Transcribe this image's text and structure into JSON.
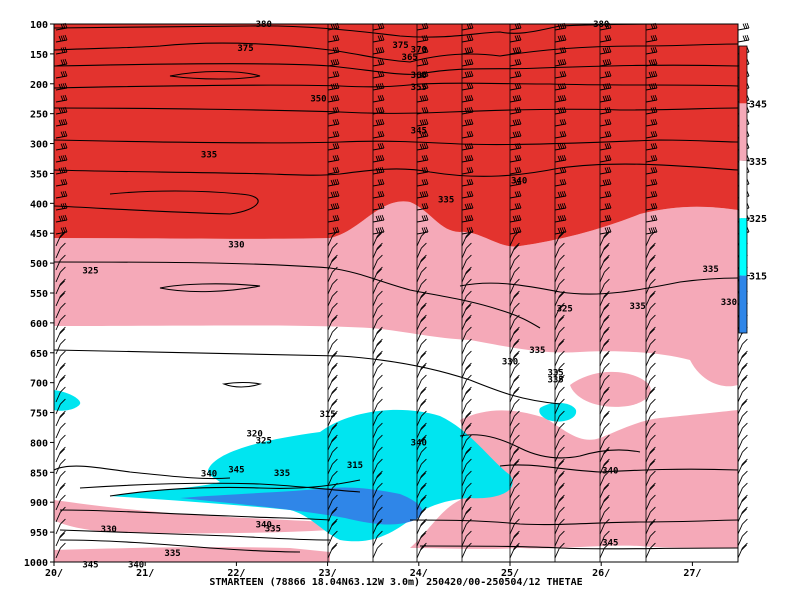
{
  "chart_data": {
    "type": "contour",
    "title": "STMARTEEN (78866 18.04N63.12W 3.0m) 250420/00-250504/12 THETAE",
    "x_tick_labels": [
      "20/",
      "21/",
      "22/",
      "23/",
      "24/",
      "25/",
      "26/",
      "27/"
    ],
    "y_tick_labels": [
      "100",
      "150",
      "200",
      "250",
      "300",
      "350",
      "400",
      "450",
      "500",
      "550",
      "600",
      "650",
      "700",
      "750",
      "800",
      "850",
      "900",
      "950",
      "1000"
    ],
    "y_ticks": [
      100,
      150,
      200,
      250,
      300,
      350,
      400,
      450,
      500,
      550,
      600,
      650,
      700,
      750,
      800,
      850,
      900,
      950,
      1000
    ],
    "x_range": [
      20,
      27.5
    ],
    "y_range_hPa": [
      1000,
      100
    ],
    "colorbar": {
      "tick_labels": [
        "345",
        "335",
        "325",
        "315"
      ],
      "levels": [
        {
          "range": "> 345",
          "color": "#e3332e"
        },
        {
          "range": "335-345",
          "color": "#f5a9b8"
        },
        {
          "range": "325-335",
          "color": "#ffffff"
        },
        {
          "range": "315-325",
          "color": "#00ffff"
        },
        {
          "range": "< 315",
          "color": "#2f86e8"
        }
      ]
    },
    "contour_labels": [
      {
        "text": "380",
        "day": 22.3,
        "p": 100
      },
      {
        "text": "380",
        "day": 26.0,
        "p": 100
      },
      {
        "text": "375",
        "day": 22.1,
        "p": 140
      },
      {
        "text": "375",
        "day": 23.8,
        "p": 135
      },
      {
        "text": "370",
        "day": 24.0,
        "p": 143
      },
      {
        "text": "365",
        "day": 23.9,
        "p": 155
      },
      {
        "text": "360",
        "day": 24.0,
        "p": 185
      },
      {
        "text": "355",
        "day": 24.0,
        "p": 205
      },
      {
        "text": "350",
        "day": 22.9,
        "p": 225
      },
      {
        "text": "345",
        "day": 24.0,
        "p": 278
      },
      {
        "text": "340",
        "day": 25.1,
        "p": 362
      },
      {
        "text": "335",
        "day": 21.7,
        "p": 318
      },
      {
        "text": "335",
        "day": 24.3,
        "p": 394
      },
      {
        "text": "335",
        "day": 27.2,
        "p": 510
      },
      {
        "text": "335",
        "day": 26.4,
        "p": 572
      },
      {
        "text": "335",
        "day": 25.3,
        "p": 645
      },
      {
        "text": "335",
        "day": 25.5,
        "p": 683
      },
      {
        "text": "335",
        "day": 22.5,
        "p": 851
      },
      {
        "text": "335",
        "day": 22.4,
        "p": 944
      },
      {
        "text": "335",
        "day": 21.3,
        "p": 985
      },
      {
        "text": "330",
        "day": 22.0,
        "p": 469
      },
      {
        "text": "330",
        "day": 25.0,
        "p": 665
      },
      {
        "text": "330",
        "day": 27.4,
        "p": 565
      },
      {
        "text": "330",
        "day": 20.6,
        "p": 945
      },
      {
        "text": "325",
        "day": 20.4,
        "p": 512
      },
      {
        "text": "325",
        "day": 25.6,
        "p": 576
      },
      {
        "text": "325",
        "day": 22.3,
        "p": 797
      },
      {
        "text": "320",
        "day": 22.2,
        "p": 785
      },
      {
        "text": "315",
        "day": 23.0,
        "p": 752
      },
      {
        "text": "315",
        "day": 23.3,
        "p": 838
      },
      {
        "text": "345",
        "day": 22.0,
        "p": 845
      },
      {
        "text": "340",
        "day": 21.7,
        "p": 852
      },
      {
        "text": "340",
        "day": 22.3,
        "p": 937
      },
      {
        "text": "340",
        "day": 20.9,
        "p": 1004
      },
      {
        "text": "345",
        "day": 20.4,
        "p": 1004
      },
      {
        "text": "340",
        "day": 24.0,
        "p": 800
      },
      {
        "text": "340",
        "day": 26.1,
        "p": 847
      },
      {
        "text": "345",
        "day": 26.1,
        "p": 967
      },
      {
        "text": "335",
        "day": 25.5,
        "p": 695
      }
    ]
  }
}
